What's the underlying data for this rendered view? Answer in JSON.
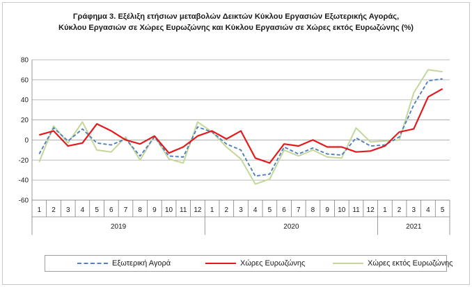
{
  "title_line1": "Γράφημα 3. Εξέλιξη  ετήσιων μεταβολών Δεικτών Κύκλου Εργασιών Εξωτερικής Αγοράς,",
  "title_line2": "Κύκλου Εργασιών σε Χώρες Ευρωζώνης και Κύκλου Εργασιών σε Χώρες εκτός Ευρωζώνης  (%)",
  "chart_data": {
    "type": "line",
    "title": "Γράφημα 3. Εξέλιξη  ετήσιων μεταβολών Δεικτών Κύκλου Εργασιών Εξωτερικής Αγοράς, Κύκλου Εργασιών σε Χώρες Ευρωζώνης και Κύκλου Εργασιών σε Χώρες εκτός Ευρωζώνης  (%)",
    "xlabel": "",
    "ylabel": "",
    "ylim": [
      -60,
      80
    ],
    "yticks": [
      -60,
      -40,
      -20,
      0,
      20,
      40,
      60,
      80
    ],
    "grid": "horizontal",
    "legend_position": "bottom",
    "categories": [
      "1",
      "2",
      "3",
      "4",
      "5",
      "6",
      "7",
      "8",
      "9",
      "10",
      "11",
      "12",
      "1",
      "2",
      "3",
      "4",
      "5",
      "6",
      "7",
      "8",
      "9",
      "10",
      "11",
      "12",
      "1",
      "2",
      "3",
      "4",
      "5"
    ],
    "year_groups": [
      {
        "label": "2019",
        "count": 12
      },
      {
        "label": "2020",
        "count": 12
      },
      {
        "label": "2021",
        "count": 5
      }
    ],
    "series": [
      {
        "name": "Εξωτερική Αγορά",
        "color": "#4f81bd",
        "style": "dashed",
        "values": [
          -14,
          12,
          -1,
          11,
          -3,
          -5,
          1,
          -16,
          3,
          -16,
          -17,
          13,
          8,
          -4,
          -10,
          -36,
          -34,
          -7,
          -14,
          -8,
          -14,
          -15,
          2,
          -6,
          -5,
          3,
          35,
          59,
          61
        ]
      },
      {
        "name": "Χώρες Ευρωζώνης",
        "color": "#e31a1c",
        "style": "solid",
        "values": [
          5,
          9,
          -6,
          -3,
          16,
          9,
          0,
          -4,
          4,
          -13,
          -7,
          4,
          9,
          1,
          9,
          -18,
          -23,
          -4,
          -6,
          0,
          -7,
          -7,
          -12,
          -11,
          -6,
          8,
          11,
          43,
          51
        ]
      },
      {
        "name": "Χώρες εκτός Ευρωζώνης",
        "color": "#c4d79b",
        "style": "solid",
        "values": [
          -22,
          14,
          -3,
          18,
          -10,
          -12,
          3,
          -20,
          4,
          -19,
          -23,
          18,
          8,
          -7,
          -19,
          -44,
          -39,
          -10,
          -16,
          -10,
          -17,
          -18,
          12,
          -2,
          -1,
          0,
          47,
          70,
          68
        ]
      }
    ]
  }
}
